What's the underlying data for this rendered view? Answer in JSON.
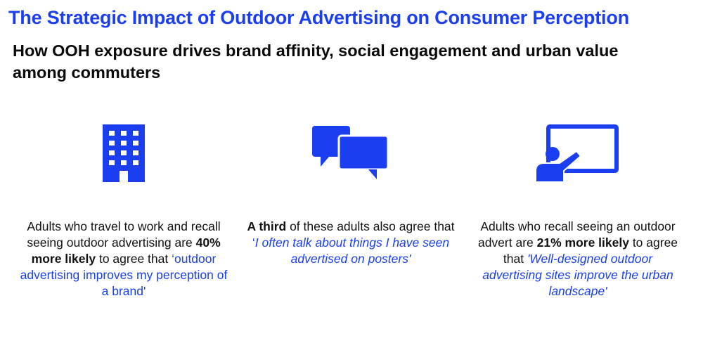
{
  "header": {
    "title": "The Strategic Impact of Outdoor Advertising on Consumer Perception",
    "subtitle": "How OOH exposure drives brand affinity, social engagement and urban value among commuters"
  },
  "colors": {
    "accent": "#1a3ef0",
    "text": "#111111",
    "background": "#ffffff"
  },
  "icons": [
    "office-building-icon",
    "speech-bubbles-icon",
    "presenter-board-icon"
  ],
  "stats": [
    {
      "text_before": "Adults who travel to work and recall seeing outdoor advertising are ",
      "highlight": "40% more likely",
      "text_middle": " to agree that ",
      "quote": "‘outdoor advertising improves my perception of a brand'"
    },
    {
      "highlight": "A third",
      "text_middle": " of these adults also agree  that ",
      "quote_open": "‘",
      "quote": "I often talk about things I have seen advertised on posters'"
    },
    {
      "text_before": "Adults who recall seeing an outdoor advert are ",
      "highlight": "21% more likely",
      "text_middle": " to agree that ",
      "quote": "'Well-designed outdoor advertising sites improve the urban landscape'"
    }
  ]
}
